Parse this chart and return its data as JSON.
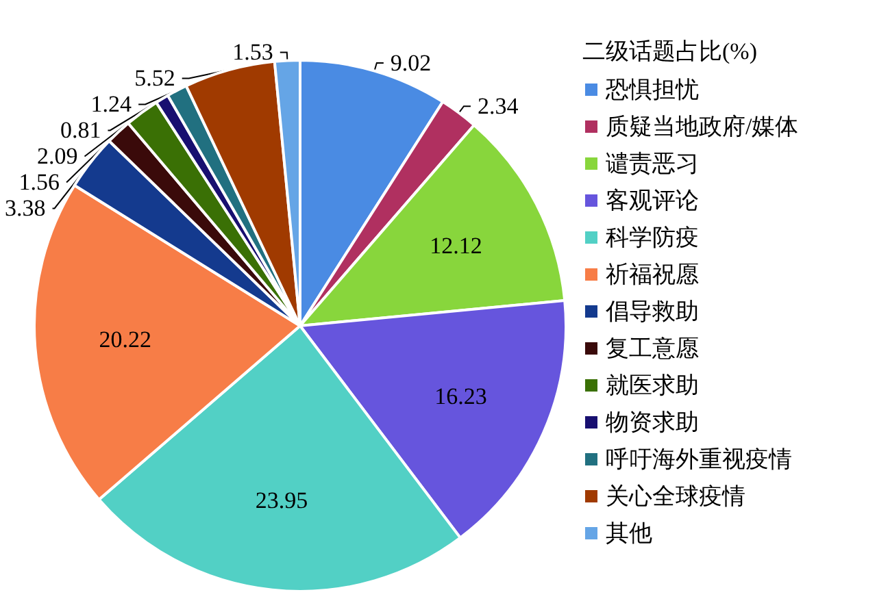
{
  "chart_data": {
    "type": "pie",
    "legend_title": "二级话题占比(%)",
    "categories": [
      "恐惧担忧",
      "质疑当地政府/媒体",
      "谴责恶习",
      "客观评论",
      "科学防疫",
      "祈福祝愿",
      "倡导救助",
      "复工意愿",
      "就医求助",
      "物资求助",
      "呼吁海外重视疫情",
      "关心全球疫情",
      "其他"
    ],
    "values": [
      9.02,
      2.34,
      12.12,
      16.23,
      23.95,
      20.22,
      3.38,
      1.56,
      2.09,
      0.81,
      1.24,
      5.52,
      1.53
    ],
    "colors": [
      "#4a8be3",
      "#b03060",
      "#88d63c",
      "#6655dd",
      "#52d0c5",
      "#f77d47",
      "#143a8e",
      "#3a0a0a",
      "#3a7005",
      "#180f70",
      "#217080",
      "#a03a00",
      "#65a5e6"
    ],
    "data_labels": true,
    "legend": "right"
  }
}
